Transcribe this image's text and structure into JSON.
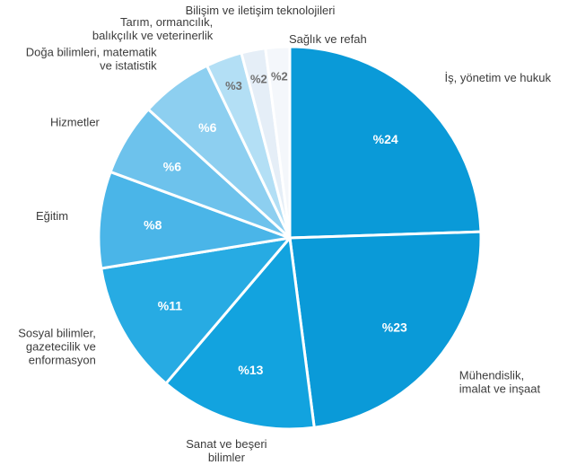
{
  "chart_data": {
    "type": "pie",
    "title": "",
    "slices": [
      {
        "label": "İş, yönetim ve hukuk",
        "value": 24,
        "value_label": "%24",
        "color": "#0a9ad8"
      },
      {
        "label": "Mühendislik,\nimalat ve inşaat",
        "value": 23,
        "value_label": "%23",
        "color": "#0a9ad8"
      },
      {
        "label": "Sanat ve beşeri\nbilimler",
        "value": 13,
        "value_label": "%13",
        "color": "#12a3df"
      },
      {
        "label": "Sosyal bilimler,\ngazetecilik ve\nenformasyon",
        "value": 11,
        "value_label": "%11",
        "color": "#27abe3"
      },
      {
        "label": "Eğitim",
        "value": 8,
        "value_label": "%8",
        "color": "#4ab5e8"
      },
      {
        "label": "Hizmetler",
        "value": 6,
        "value_label": "%6",
        "color": "#6dc2ec"
      },
      {
        "label": "Doğa bilimleri, matematik\nve istatistik",
        "value": 6,
        "value_label": "%6",
        "color": "#8dcff0"
      },
      {
        "label": "Tarım, ormancılık,\nbalıkçılık ve veterinerlik",
        "value": 3,
        "value_label": "%3",
        "color": "#b3dff5"
      },
      {
        "label": "Bilişim ve iletişim teknolojileri",
        "value": 2,
        "value_label": "%2",
        "color": "#e5eef7"
      },
      {
        "label": "Sağlık ve refah",
        "value": 2,
        "value_label": "%2",
        "color": "#f4f7fb"
      }
    ]
  }
}
